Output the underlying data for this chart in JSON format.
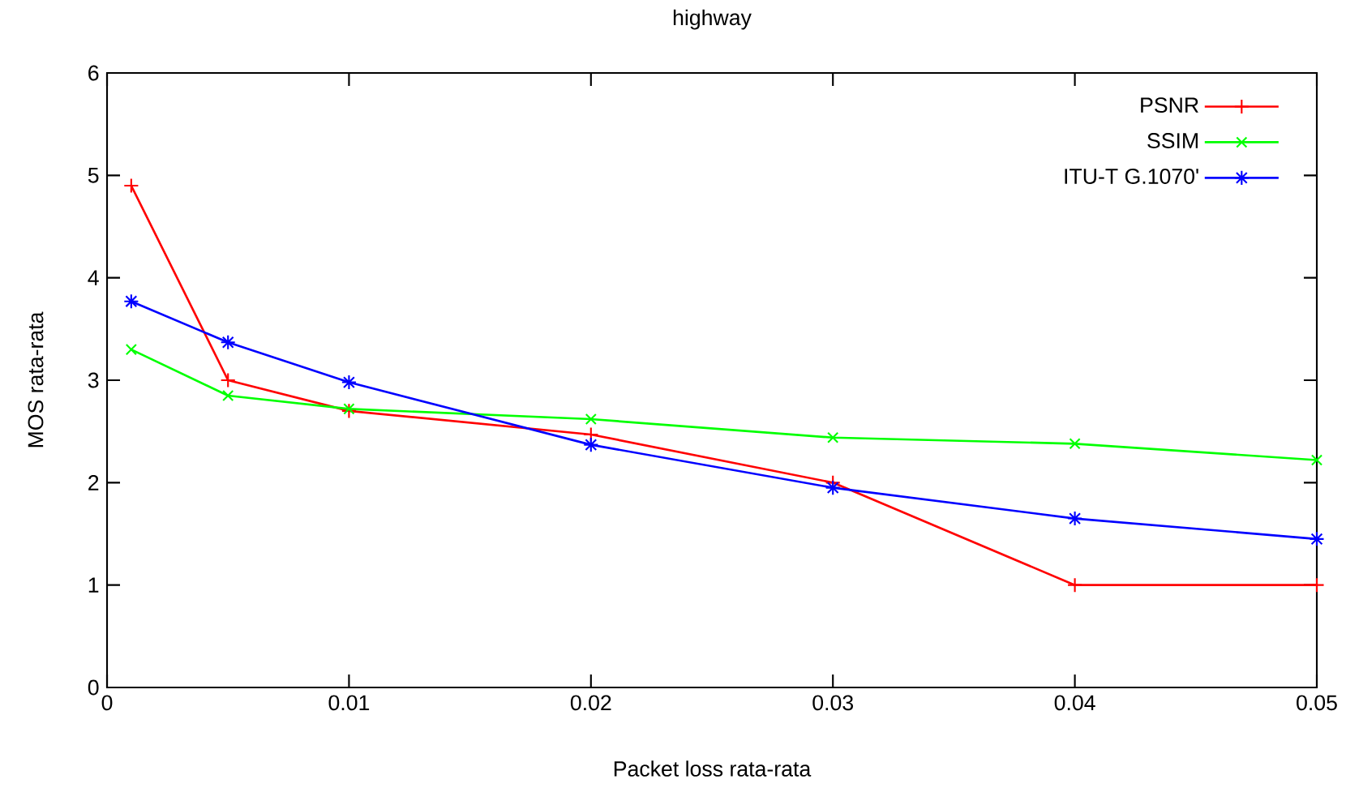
{
  "chart_data": {
    "type": "line",
    "title": "highway",
    "xlabel": "Packet loss rata-rata",
    "ylabel": "MOS rata-rata",
    "x": [
      0.001,
      0.005,
      0.01,
      0.02,
      0.03,
      0.04,
      0.05
    ],
    "series": [
      {
        "name": "PSNR",
        "color": "#ff0000",
        "marker": "plus",
        "values": [
          4.9,
          3.0,
          2.7,
          2.47,
          2.0,
          1.0,
          1.0
        ]
      },
      {
        "name": "SSIM",
        "color": "#00ff00",
        "marker": "x",
        "values": [
          3.3,
          2.85,
          2.72,
          2.62,
          2.44,
          2.38,
          2.22
        ]
      },
      {
        "name": "ITU-T G.1070'",
        "color": "#0000ff",
        "marker": "cross",
        "values": [
          3.77,
          3.37,
          2.98,
          2.37,
          1.95,
          1.65,
          1.45
        ]
      }
    ],
    "xlim": [
      0,
      0.05
    ],
    "xticks": [
      0,
      0.01,
      0.02,
      0.03,
      0.04,
      0.05
    ],
    "ylim": [
      0,
      6
    ],
    "yticks": [
      0,
      1,
      2,
      3,
      4,
      5,
      6
    ],
    "legend": "top right",
    "line_style": "solid",
    "grid": false
  }
}
